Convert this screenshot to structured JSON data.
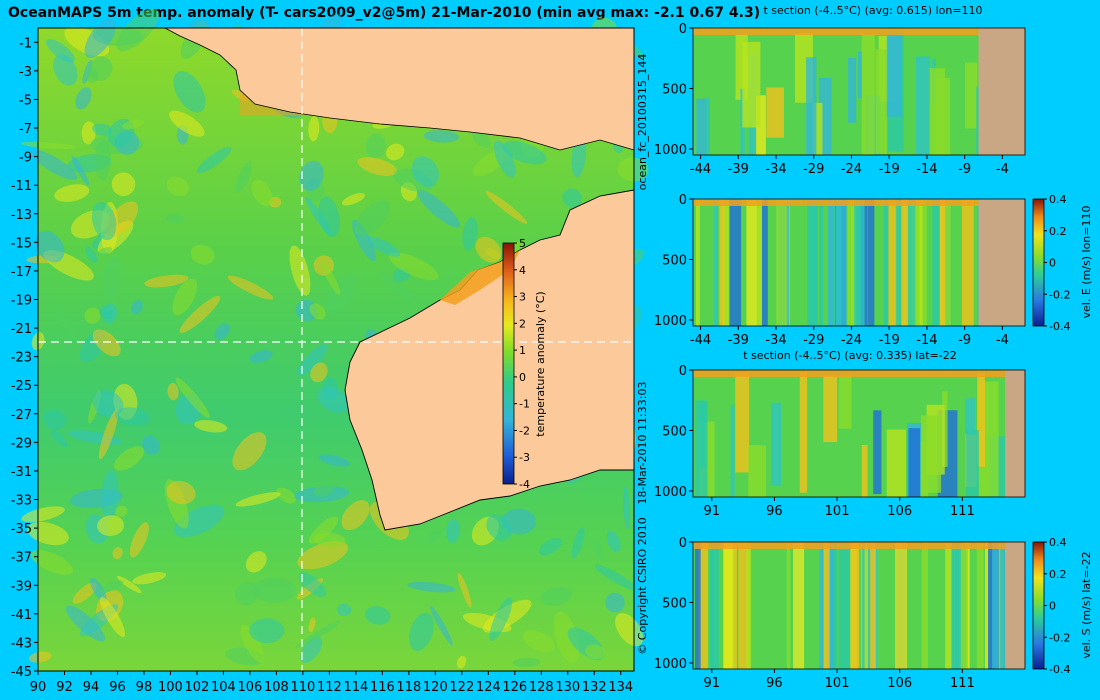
{
  "title": "OceanMAPS 5m temp. anomaly (T- cars2009_v2@5m) 21-Mar-2010 (min avg max: -2.1 0.67 4.3)",
  "side_texts": {
    "run_id": "ocean_fc_20100315_144",
    "run_time": "18-Mar-2010 11:33:03",
    "copyright": "© Copyright CSIRO 2010"
  },
  "colors": {
    "background": "#00cdff",
    "ocean_low": "#0b3fa8",
    "ocean_mid": "#2bc98a",
    "ocean_green": "#6fd630",
    "ocean_high": "#f3a01e",
    "land": "#fbc99a",
    "section_land": "#c9a684",
    "crosshair": "#ffffff"
  },
  "chart_data": [
    {
      "type": "heatmap",
      "title": "OceanMAPS 5m temp. anomaly (T- cars2009_v2@5m) 21-Mar-2010 (min avg max: -2.1 0.67 4.3)",
      "summary_stats": {
        "min": -2.1,
        "avg": 0.67,
        "max": 4.3
      },
      "x_ticks": [
        "90",
        "92",
        "94",
        "96",
        "98",
        "100",
        "102",
        "104",
        "106",
        "108",
        "110",
        "112",
        "114",
        "116",
        "118",
        "120",
        "122",
        "124",
        "126",
        "128",
        "130",
        "132",
        "134"
      ],
      "y_ticks": [
        "-1",
        "-3",
        "-5",
        "-7",
        "-9",
        "-11",
        "-13",
        "-15",
        "-17",
        "-19",
        "-21",
        "-23",
        "-25",
        "-27",
        "-29",
        "-31",
        "-33",
        "-35",
        "-37",
        "-39",
        "-41",
        "-43",
        "-45"
      ],
      "xlim": [
        90,
        135
      ],
      "ylim": [
        -45,
        0
      ],
      "crosshair": {
        "lon": 110,
        "lat": -22
      },
      "colorbar": {
        "label": "temperature anomaly (°C)",
        "ticks": [
          "5",
          "4",
          "3",
          "2",
          "1",
          "0",
          "-1",
          "-2",
          "-3",
          "-4"
        ],
        "range": [
          -4,
          5
        ]
      }
    },
    {
      "type": "heatmap",
      "title": "t section (-4..5°C) (avg: 0.615) lon=110",
      "x_ticks": [
        "-44",
        "-39",
        "-34",
        "-29",
        "-24",
        "-19",
        "-14",
        "-9",
        "-4"
      ],
      "y_ticks": [
        "0",
        "500",
        "1000"
      ],
      "xlim": [
        -45,
        -1
      ],
      "ylim": [
        1050,
        0
      ],
      "avg": 0.615
    },
    {
      "type": "heatmap",
      "title": "",
      "x_ticks": [
        "-44",
        "-39",
        "-34",
        "-29",
        "-24",
        "-19",
        "-14",
        "-9",
        "-4"
      ],
      "y_ticks": [
        "0",
        "500",
        "1000"
      ],
      "xlim": [
        -45,
        -1
      ],
      "ylim": [
        1050,
        0
      ],
      "colorbar": {
        "label": "vel. E (m/s) lon=110",
        "ticks": [
          "0.4",
          "0.2",
          "0",
          "-0.2",
          "-0.4"
        ],
        "range": [
          -0.4,
          0.4
        ]
      }
    },
    {
      "type": "heatmap",
      "title": "t section (-4..5°C) (avg: 0.335) lat=-22",
      "x_ticks": [
        "91",
        "96",
        "101",
        "106",
        "111"
      ],
      "y_ticks": [
        "0",
        "500",
        "1000"
      ],
      "xlim": [
        89.5,
        116
      ],
      "ylim": [
        1050,
        0
      ],
      "avg": 0.335
    },
    {
      "type": "heatmap",
      "title": "",
      "x_ticks": [
        "91",
        "96",
        "101",
        "106",
        "111"
      ],
      "y_ticks": [
        "0",
        "500",
        "1000"
      ],
      "xlim": [
        89.5,
        116
      ],
      "ylim": [
        1050,
        0
      ],
      "colorbar": {
        "label": "vel. S (m/s) lat=-22",
        "ticks": [
          "0.4",
          "0.2",
          "0",
          "-0.2",
          "-0.4"
        ],
        "range": [
          -0.4,
          0.4
        ]
      }
    }
  ]
}
